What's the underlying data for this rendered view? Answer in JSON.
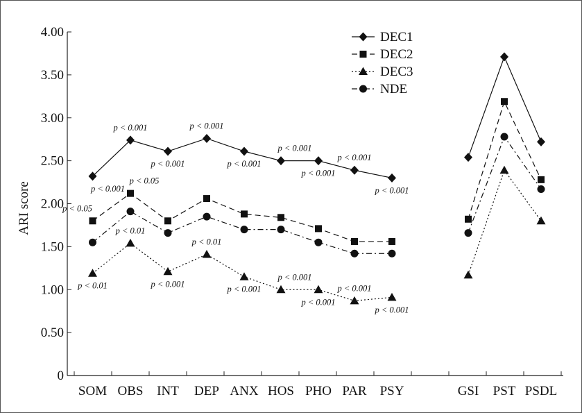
{
  "chart_data": {
    "type": "line",
    "title": "",
    "xlabel": "",
    "ylabel": "ARI score",
    "ylim": [
      0,
      4.0
    ],
    "yticks": [
      "0",
      "0.50",
      "1.00",
      "1.50",
      "2.00",
      "2.50",
      "3.00",
      "3.50",
      "4.00"
    ],
    "ytick_values": [
      0,
      0.5,
      1.0,
      1.5,
      2.0,
      2.5,
      3.0,
      3.5,
      4.0
    ],
    "grid": false,
    "legend_position": "top-right",
    "groups": [
      {
        "categories": [
          "SOM",
          "OBS",
          "INT",
          "DEP",
          "ANX",
          "HOS",
          "PHO",
          "PAR",
          "PSY"
        ]
      },
      {
        "categories": [
          "GSI",
          "PST",
          "PSDL"
        ]
      }
    ],
    "series": [
      {
        "name": "DEC1",
        "marker": "diamond",
        "dash": "solid",
        "values": [
          [
            2.32,
            2.74,
            2.61,
            2.76,
            2.61,
            2.5,
            2.5,
            2.39,
            2.3
          ],
          [
            2.54,
            3.71,
            2.72
          ]
        ]
      },
      {
        "name": "DEC2",
        "marker": "square",
        "dash": "dashed",
        "values": [
          [
            1.8,
            2.12,
            1.8,
            2.06,
            1.88,
            1.84,
            1.71,
            1.56,
            1.56
          ],
          [
            1.82,
            3.19,
            2.28
          ]
        ]
      },
      {
        "name": "DEC3",
        "marker": "triangle",
        "dash": "dotted",
        "values": [
          [
            1.19,
            1.54,
            1.21,
            1.41,
            1.15,
            1.0,
            1.0,
            0.87,
            0.91
          ],
          [
            1.17,
            2.39,
            1.8
          ]
        ]
      },
      {
        "name": "NDE",
        "marker": "circle",
        "dash": "dashdot",
        "values": [
          [
            1.55,
            1.91,
            1.66,
            1.85,
            1.7,
            1.7,
            1.55,
            1.42,
            1.42
          ],
          [
            1.66,
            2.78,
            2.17
          ]
        ]
      }
    ],
    "annotations": [
      {
        "text": "p < 0.001",
        "cat": 1,
        "y": 2.74,
        "place": "above"
      },
      {
        "text": "p < 0.001",
        "cat": 0,
        "y": 2.32,
        "place": "below-right"
      },
      {
        "text": "p < 0.001",
        "cat": 2,
        "y": 2.61,
        "place": "below"
      },
      {
        "text": "p < 0.001",
        "cat": 3,
        "y": 2.76,
        "place": "above"
      },
      {
        "text": "p < 0.001",
        "cat": 4,
        "y": 2.61,
        "place": "below"
      },
      {
        "text": "p < 0.001",
        "cat": 5,
        "y": 2.5,
        "place": "above-right"
      },
      {
        "text": "p < 0.001",
        "cat": 6,
        "y": 2.5,
        "place": "below"
      },
      {
        "text": "p < 0.001",
        "cat": 7,
        "y": 2.39,
        "place": "above"
      },
      {
        "text": "p < 0.001",
        "cat": 8,
        "y": 2.3,
        "place": "below"
      },
      {
        "text": "p < 0.05",
        "cat": 0,
        "y": 1.8,
        "place": "above-left"
      },
      {
        "text": "p < 0.05",
        "cat": 1,
        "y": 2.12,
        "place": "above-right"
      },
      {
        "text": "p < 0.01",
        "cat": 1,
        "y": 1.54,
        "place": "above"
      },
      {
        "text": "p < 0.01",
        "cat": 0,
        "y": 1.19,
        "place": "below"
      },
      {
        "text": "p < 0.001",
        "cat": 2,
        "y": 1.21,
        "place": "below"
      },
      {
        "text": "p < 0.01",
        "cat": 3,
        "y": 1.41,
        "place": "above"
      },
      {
        "text": "p < 0.001",
        "cat": 4,
        "y": 1.15,
        "place": "below"
      },
      {
        "text": "p < 0.001",
        "cat": 5,
        "y": 1.0,
        "place": "above-right"
      },
      {
        "text": "p < 0.001",
        "cat": 6,
        "y": 1.0,
        "place": "below"
      },
      {
        "text": "p < 0.001",
        "cat": 7,
        "y": 0.87,
        "place": "above"
      },
      {
        "text": "p < 0.001",
        "cat": 8,
        "y": 0.91,
        "place": "below"
      }
    ]
  }
}
